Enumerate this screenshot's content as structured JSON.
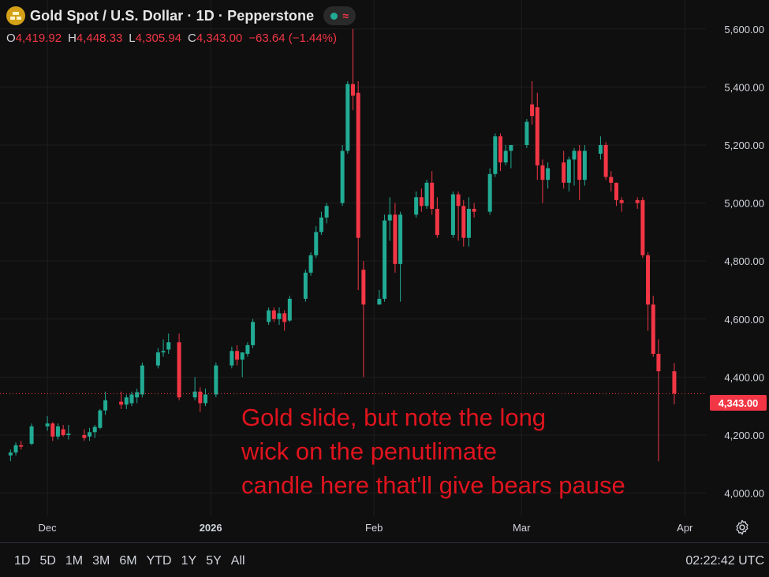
{
  "header": {
    "title": "Gold Spot / U.S. Dollar · 1D · Pepperstone",
    "logo_icon": "gold-bars-icon",
    "status_icon": "market-open-dot-icon",
    "wave_icon": "tilde-wave-icon"
  },
  "ohlc": {
    "o_label": "O",
    "o_value": "4,419.92",
    "h_label": "H",
    "h_value": "4,448.33",
    "l_label": "L",
    "l_value": "4,305.94",
    "c_label": "C",
    "c_value": "4,343.00",
    "change": "−63.64 (−1.44%)"
  },
  "annotation": {
    "line1": "Gold slide, but note the long",
    "line2": "wick on the penutlimate",
    "line3": "candle here that'll give bears pause"
  },
  "price_tag": "4,343.00",
  "toolbar": {
    "ranges": [
      "1D",
      "5D",
      "1M",
      "3M",
      "6M",
      "YTD",
      "1Y",
      "5Y",
      "All"
    ],
    "clock": "02:22:42 UTC",
    "settings_icon": "gear-icon"
  },
  "colors": {
    "up": "#22ab94",
    "down": "#f23645",
    "background": "#0f0f0f",
    "grid": "#1e1e1e",
    "annotation": "#e0141e"
  },
  "chart_data": {
    "type": "candlestick",
    "symbol": "Gold Spot / U.S. Dollar",
    "interval": "1D",
    "y_ticks": [
      "4,000.00",
      "4,200.00",
      "4,400.00",
      "4,600.00",
      "4,800.00",
      "5,000.00",
      "5,200.00",
      "5,400.00",
      "5,600.00"
    ],
    "y_tick_values": [
      4000,
      4200,
      4400,
      4600,
      4800,
      5000,
      5200,
      5400,
      5600
    ],
    "x_ticks": [
      "Dec",
      "2026",
      "Feb",
      "Mar",
      "Apr"
    ],
    "x_tick_dates": [
      "2025-12-01",
      "2026-01-01",
      "2026-02-01",
      "2026-03-01",
      "2026-04-01"
    ],
    "ylim": [
      3920,
      5700
    ],
    "xlim": [
      "2025-11-22",
      "2026-04-05"
    ],
    "last_price": 4343.0,
    "candles": [
      {
        "date": "2025-11-24",
        "o": 4130,
        "h": 4150,
        "l": 4110,
        "c": 4140
      },
      {
        "date": "2025-11-25",
        "o": 4140,
        "h": 4175,
        "l": 4130,
        "c": 4165
      },
      {
        "date": "2025-11-26",
        "o": 4165,
        "h": 4180,
        "l": 4150,
        "c": 4160
      },
      {
        "date": "2025-11-28",
        "o": 4170,
        "h": 4240,
        "l": 4165,
        "c": 4230
      },
      {
        "date": "2025-12-01",
        "o": 4230,
        "h": 4265,
        "l": 4215,
        "c": 4240
      },
      {
        "date": "2025-12-02",
        "o": 4240,
        "h": 4245,
        "l": 4180,
        "c": 4195
      },
      {
        "date": "2025-12-03",
        "o": 4195,
        "h": 4240,
        "l": 4185,
        "c": 4230
      },
      {
        "date": "2025-12-04",
        "o": 4220,
        "h": 4235,
        "l": 4195,
        "c": 4200
      },
      {
        "date": "2025-12-05",
        "o": 4200,
        "h": 4235,
        "l": 4185,
        "c": 4205
      },
      {
        "date": "2025-12-08",
        "o": 4200,
        "h": 4220,
        "l": 4180,
        "c": 4190
      },
      {
        "date": "2025-12-09",
        "o": 4195,
        "h": 4225,
        "l": 4180,
        "c": 4210
      },
      {
        "date": "2025-12-10",
        "o": 4210,
        "h": 4235,
        "l": 4190,
        "c": 4228
      },
      {
        "date": "2025-12-11",
        "o": 4225,
        "h": 4290,
        "l": 4220,
        "c": 4285
      },
      {
        "date": "2025-12-12",
        "o": 4285,
        "h": 4350,
        "l": 4270,
        "c": 4320
      },
      {
        "date": "2025-12-15",
        "o": 4315,
        "h": 4350,
        "l": 4290,
        "c": 4305
      },
      {
        "date": "2025-12-16",
        "o": 4305,
        "h": 4340,
        "l": 4290,
        "c": 4330
      },
      {
        "date": "2025-12-17",
        "o": 4310,
        "h": 4350,
        "l": 4300,
        "c": 4340
      },
      {
        "date": "2025-12-18",
        "o": 4330,
        "h": 4360,
        "l": 4310,
        "c": 4348
      },
      {
        "date": "2025-12-19",
        "o": 4340,
        "h": 4450,
        "l": 4330,
        "c": 4440
      },
      {
        "date": "2025-12-22",
        "o": 4440,
        "h": 4500,
        "l": 4430,
        "c": 4485
      },
      {
        "date": "2025-12-23",
        "o": 4485,
        "h": 4530,
        "l": 4470,
        "c": 4490
      },
      {
        "date": "2025-12-24",
        "o": 4495,
        "h": 4550,
        "l": 4480,
        "c": 4520
      },
      {
        "date": "2025-12-26",
        "o": 4520,
        "h": 4550,
        "l": 4320,
        "c": 4330
      },
      {
        "date": "2025-12-29",
        "o": 4330,
        "h": 4400,
        "l": 4320,
        "c": 4350
      },
      {
        "date": "2025-12-30",
        "o": 4350,
        "h": 4365,
        "l": 4280,
        "c": 4310
      },
      {
        "date": "2025-12-31",
        "o": 4310,
        "h": 4360,
        "l": 4300,
        "c": 4340
      },
      {
        "date": "2026-01-02",
        "o": 4340,
        "h": 4450,
        "l": 4330,
        "c": 4440
      },
      {
        "date": "2026-01-05",
        "o": 4440,
        "h": 4505,
        "l": 4430,
        "c": 4490
      },
      {
        "date": "2026-01-06",
        "o": 4490,
        "h": 4510,
        "l": 4440,
        "c": 4460
      },
      {
        "date": "2026-01-07",
        "o": 4460,
        "h": 4480,
        "l": 4400,
        "c": 4485
      },
      {
        "date": "2026-01-08",
        "o": 4480,
        "h": 4520,
        "l": 4470,
        "c": 4510
      },
      {
        "date": "2026-01-09",
        "o": 4510,
        "h": 4600,
        "l": 4500,
        "c": 4590
      },
      {
        "date": "2026-01-12",
        "o": 4590,
        "h": 4640,
        "l": 4580,
        "c": 4630
      },
      {
        "date": "2026-01-13",
        "o": 4630,
        "h": 4640,
        "l": 4590,
        "c": 4600
      },
      {
        "date": "2026-01-14",
        "o": 4600,
        "h": 4640,
        "l": 4580,
        "c": 4620
      },
      {
        "date": "2026-01-15",
        "o": 4620,
        "h": 4630,
        "l": 4560,
        "c": 4590
      },
      {
        "date": "2026-01-16",
        "o": 4595,
        "h": 4680,
        "l": 4590,
        "c": 4670
      },
      {
        "date": "2026-01-19",
        "o": 4670,
        "h": 4770,
        "l": 4660,
        "c": 4760
      },
      {
        "date": "2026-01-20",
        "o": 4760,
        "h": 4830,
        "l": 4750,
        "c": 4820
      },
      {
        "date": "2026-01-21",
        "o": 4820,
        "h": 4920,
        "l": 4810,
        "c": 4900
      },
      {
        "date": "2026-01-22",
        "o": 4900,
        "h": 4970,
        "l": 4890,
        "c": 4950
      },
      {
        "date": "2026-01-23",
        "o": 4950,
        "h": 5000,
        "l": 4930,
        "c": 4990
      },
      {
        "date": "2026-01-26",
        "o": 5000,
        "h": 5200,
        "l": 4990,
        "c": 5180
      },
      {
        "date": "2026-01-27",
        "o": 5180,
        "h": 5420,
        "l": 5170,
        "c": 5410
      },
      {
        "date": "2026-01-28",
        "o": 5410,
        "h": 5600,
        "l": 5320,
        "c": 5370
      },
      {
        "date": "2026-01-29",
        "o": 5380,
        "h": 5420,
        "l": 4700,
        "c": 4880
      },
      {
        "date": "2026-01-30",
        "o": 4770,
        "h": 4800,
        "l": 4400,
        "c": 4650
      },
      {
        "date": "2026-02-02",
        "o": 4650,
        "h": 4700,
        "l": 4650,
        "c": 4670
      },
      {
        "date": "2026-02-03",
        "o": 4670,
        "h": 4960,
        "l": 4660,
        "c": 4940
      },
      {
        "date": "2026-02-04",
        "o": 4940,
        "h": 5020,
        "l": 4870,
        "c": 4960
      },
      {
        "date": "2026-02-05",
        "o": 4960,
        "h": 5000,
        "l": 4760,
        "c": 4790
      },
      {
        "date": "2026-02-06",
        "o": 4790,
        "h": 4970,
        "l": 4660,
        "c": 4960
      },
      {
        "date": "2026-02-09",
        "o": 4960,
        "h": 5040,
        "l": 4950,
        "c": 5020
      },
      {
        "date": "2026-02-10",
        "o": 5020,
        "h": 5050,
        "l": 4970,
        "c": 4990
      },
      {
        "date": "2026-02-11",
        "o": 4990,
        "h": 5080,
        "l": 4980,
        "c": 5070
      },
      {
        "date": "2026-02-12",
        "o": 5070,
        "h": 5110,
        "l": 4960,
        "c": 4980
      },
      {
        "date": "2026-02-13",
        "o": 4980,
        "h": 5020,
        "l": 4880,
        "c": 4890
      },
      {
        "date": "2026-02-16",
        "o": 4890,
        "h": 5040,
        "l": 4880,
        "c": 5030
      },
      {
        "date": "2026-02-17",
        "o": 5030,
        "h": 5040,
        "l": 4870,
        "c": 4990
      },
      {
        "date": "2026-02-18",
        "o": 4990,
        "h": 5010,
        "l": 4850,
        "c": 4880
      },
      {
        "date": "2026-02-19",
        "o": 4880,
        "h": 5020,
        "l": 4850,
        "c": 4980
      },
      {
        "date": "2026-02-20",
        "o": 4980,
        "h": 5000,
        "l": 4950,
        "c": 4970
      },
      {
        "date": "2026-02-23",
        "o": 4970,
        "h": 5120,
        "l": 4960,
        "c": 5100
      },
      {
        "date": "2026-02-24",
        "o": 5100,
        "h": 5240,
        "l": 5090,
        "c": 5230
      },
      {
        "date": "2026-02-25",
        "o": 5230,
        "h": 5240,
        "l": 5110,
        "c": 5140
      },
      {
        "date": "2026-02-26",
        "o": 5140,
        "h": 5200,
        "l": 5130,
        "c": 5180
      },
      {
        "date": "2026-02-27",
        "o": 5180,
        "h": 5200,
        "l": 5120,
        "c": 5200
      },
      {
        "date": "2026-03-02",
        "o": 5200,
        "h": 5290,
        "l": 5190,
        "c": 5280
      },
      {
        "date": "2026-03-03",
        "o": 5340,
        "h": 5420,
        "l": 5270,
        "c": 5300
      },
      {
        "date": "2026-03-04",
        "o": 5330,
        "h": 5380,
        "l": 5080,
        "c": 5130
      },
      {
        "date": "2026-03-05",
        "o": 5130,
        "h": 5150,
        "l": 5000,
        "c": 5080
      },
      {
        "date": "2026-03-06",
        "o": 5080,
        "h": 5140,
        "l": 5050,
        "c": 5120
      },
      {
        "date": "2026-03-09",
        "o": 5140,
        "h": 5180,
        "l": 5050,
        "c": 5070
      },
      {
        "date": "2026-03-10",
        "o": 5070,
        "h": 5160,
        "l": 5040,
        "c": 5150
      },
      {
        "date": "2026-03-11",
        "o": 5150,
        "h": 5190,
        "l": 5060,
        "c": 5180
      },
      {
        "date": "2026-03-12",
        "o": 5180,
        "h": 5200,
        "l": 5010,
        "c": 5080
      },
      {
        "date": "2026-03-13",
        "o": 5080,
        "h": 5200,
        "l": 5060,
        "c": 5180
      },
      {
        "date": "2026-03-16",
        "o": 5170,
        "h": 5230,
        "l": 5150,
        "c": 5200
      },
      {
        "date": "2026-03-17",
        "o": 5200,
        "h": 5210,
        "l": 5080,
        "c": 5090
      },
      {
        "date": "2026-03-18",
        "o": 5090,
        "h": 5110,
        "l": 5040,
        "c": 5070
      },
      {
        "date": "2026-03-19",
        "o": 5070,
        "h": 5070,
        "l": 4990,
        "c": 5010
      },
      {
        "date": "2026-03-20",
        "o": 5010,
        "h": 5020,
        "l": 4970,
        "c": 5000
      },
      {
        "date": "2026-03-23",
        "o": 5010,
        "h": 5020,
        "l": 4980,
        "c": 5000
      },
      {
        "date": "2026-03-24",
        "o": 5010,
        "h": 5020,
        "l": 4810,
        "c": 4820
      },
      {
        "date": "2026-03-25",
        "o": 4820,
        "h": 4830,
        "l": 4560,
        "c": 4650
      },
      {
        "date": "2026-03-26",
        "o": 4650,
        "h": 4680,
        "l": 4470,
        "c": 4480
      },
      {
        "date": "2026-03-27",
        "o": 4480,
        "h": 4530,
        "l": 4110,
        "c": 4420
      },
      {
        "date": "2026-03-30",
        "o": 4419.92,
        "h": 4448.33,
        "l": 4305.94,
        "c": 4343.0
      }
    ]
  }
}
